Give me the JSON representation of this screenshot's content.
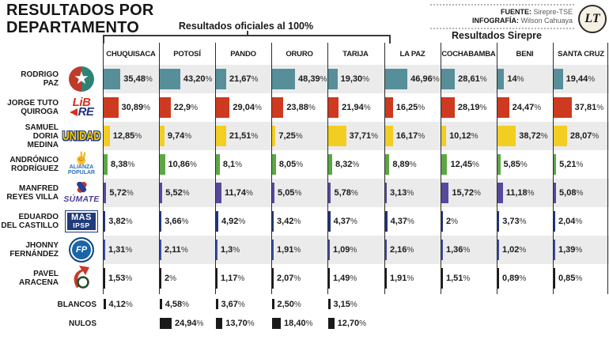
{
  "header": {
    "title": "RESULTADOS POR DEPARTAMENTO",
    "official_group_label": "Resultados oficiales al 100%",
    "sirepre_group_label": "Resultados Sirepre",
    "source_label": "FUENTE:",
    "source_value": "Sirepre-TSE",
    "infografia_label": "INFOGRAFÍA:",
    "infografia_value": "Wilson Cahuaya",
    "newspaper_logo_text": "LT"
  },
  "footer_rows": {
    "blancos_label": "BLANCOS",
    "nulos_label": "NULOS"
  },
  "colors": {
    "stripe": "#ebebeb",
    "grid_line": "#2b2b2b",
    "text": "#1a1a1a"
  },
  "chart_data": {
    "type": "bar",
    "title": "RESULTADOS POR DEPARTAMENTO",
    "unit": "%",
    "categories": [
      "CHUQUISACA",
      "POTOSÍ",
      "PANDO",
      "ORURO",
      "TARIJA",
      "LA PAZ",
      "COCHABAMBA",
      "BENI",
      "SANTA CRUZ"
    ],
    "column_groups": [
      {
        "label": "Resultados oficiales al 100%",
        "columns": [
          "CHUQUISACA",
          "POTOSÍ",
          "PANDO",
          "ORURO",
          "TARIJA"
        ]
      },
      {
        "label": "Resultados Sirepre",
        "columns": [
          "LA PAZ",
          "COCHABAMBA",
          "BENI",
          "SANTA CRUZ"
        ]
      }
    ],
    "series": [
      {
        "name": "RODRIGO PAZ",
        "name_lines": [
          "RODRIGO",
          "PAZ"
        ],
        "logo_type": "pdc",
        "logo_lines": [],
        "color": "#568f99",
        "values": [
          35.48,
          43.2,
          21.67,
          48.39,
          19.3,
          46.96,
          28.61,
          14,
          19.44
        ],
        "labels": [
          "35,48%",
          "43,20%",
          "21,67%",
          "48,39%",
          "19,30%",
          "46,96%",
          "28,61%",
          "14%",
          "19,44%"
        ]
      },
      {
        "name": "JORGE TUTO QUIROGA",
        "name_lines": [
          "JORGE TUTO",
          "QUIROGA"
        ],
        "logo_type": "libre",
        "logo_lines": [
          "LiB",
          "RE"
        ],
        "color": "#cd3a20",
        "values": [
          30.89,
          22.9,
          29.04,
          23.88,
          21.94,
          16.25,
          28.19,
          24.47,
          37.81
        ],
        "labels": [
          "30,89%",
          "22,9%",
          "29,04%",
          "23,88%",
          "21,94%",
          "16,25%",
          "28,19%",
          "24,47%",
          "37,81%"
        ]
      },
      {
        "name": "SAMUEL DORIA MEDINA",
        "name_lines": [
          "SAMUEL",
          "DORIA MEDINA"
        ],
        "logo_type": "unidad",
        "logo_lines": [
          "UNIDAD"
        ],
        "color": "#f2ce22",
        "values": [
          12.85,
          9.74,
          21.51,
          7.25,
          37.71,
          16.17,
          10.12,
          38.72,
          28.07
        ],
        "labels": [
          "12,85%",
          "9,74%",
          "21,51%",
          "7,25%",
          "37,71%",
          "16,17%",
          "10,12%",
          "38,72%",
          "28,07%"
        ]
      },
      {
        "name": "ANDRÓNICO RODRÍGUEZ",
        "name_lines": [
          "ANDRÓNICO",
          "RODRÍGUEZ"
        ],
        "logo_type": "alianza",
        "logo_lines": [
          "ALIANZA",
          "POPULAR"
        ],
        "color": "#5ca744",
        "values": [
          8.38,
          10.86,
          8.1,
          8.05,
          8.32,
          8.89,
          12.45,
          5.85,
          5.21
        ],
        "labels": [
          "8,38%",
          "10,86%",
          "8,1%",
          "8,05%",
          "8,32%",
          "8,89%",
          "12,45%",
          "5,85%",
          "5,21%"
        ]
      },
      {
        "name": "MANFRED REYES VILLA",
        "name_lines": [
          "MANFRED",
          "REYES VILLA"
        ],
        "logo_type": "sumate",
        "logo_lines": [
          "SÚMATE"
        ],
        "color": "#55499c",
        "values": [
          5.72,
          5.52,
          11.74,
          5.05,
          5.78,
          3.13,
          15.72,
          11.18,
          5.08
        ],
        "labels": [
          "5,72%",
          "5,52%",
          "11,74%",
          "5,05%",
          "5,78%",
          "3,13%",
          "15,72%",
          "11,18%",
          "5,08%"
        ]
      },
      {
        "name": "EDUARDO DEL CASTILLO",
        "name_lines": [
          "EDUARDO",
          "DEL CASTILLO"
        ],
        "logo_type": "mas",
        "logo_lines": [
          "MAS",
          "IPSP"
        ],
        "color": "#21357b",
        "values": [
          3.82,
          3.66,
          4.92,
          3.42,
          4.37,
          4.37,
          2,
          3.73,
          2.04
        ],
        "labels": [
          "3,82%",
          "3,66%",
          "4,92%",
          "3,42%",
          "4,37%",
          "4,37%",
          "2%",
          "3,73%",
          "2,04%"
        ]
      },
      {
        "name": "JHONNY FERNÁNDEZ",
        "name_lines": [
          "JHONNY",
          "FERNÁNDEZ"
        ],
        "logo_type": "fp",
        "logo_lines": [
          "FP"
        ],
        "color": "#3d4c9e",
        "values": [
          1.31,
          2.11,
          1.3,
          1.91,
          1.09,
          2.16,
          1.36,
          1.02,
          1.39
        ],
        "labels": [
          "1,31%",
          "2,11%",
          "1,3%",
          "1,91%",
          "1,09%",
          "2,16%",
          "1,36%",
          "1,02%",
          "1,39%"
        ]
      },
      {
        "name": "PAVEL ARACENA",
        "name_lines": [
          "PAVEL",
          "ARACENA"
        ],
        "logo_type": "adn",
        "logo_lines": [],
        "color": "#1a1a1a",
        "values": [
          1.53,
          2,
          1.17,
          2.07,
          1.49,
          1.91,
          1.51,
          0.89,
          0.85
        ],
        "labels": [
          "1,53%",
          "2%",
          "1,17%",
          "2,07%",
          "1,49%",
          "1,91%",
          "1,51%",
          "0,89%",
          "0,85%"
        ]
      }
    ],
    "extra_rows": [
      {
        "name": "BLANCOS",
        "style": "thin",
        "color": "#1a1a1a",
        "values": [
          4.12,
          4.58,
          3.67,
          2.5,
          3.15,
          null,
          null,
          null,
          null
        ],
        "labels": [
          "4,12%",
          "4,58%",
          "3,67%",
          "2,50%",
          "3,15%",
          null,
          null,
          null,
          null
        ]
      },
      {
        "name": "NULOS",
        "style": "block",
        "color": "#1a1a1a",
        "values": [
          null,
          24.94,
          13.7,
          18.4,
          12.7,
          null,
          null,
          null,
          null
        ],
        "labels": [
          null,
          "24,94%",
          "13,70%",
          "18,40%",
          "12,70%",
          null,
          null,
          null,
          null
        ]
      }
    ]
  }
}
